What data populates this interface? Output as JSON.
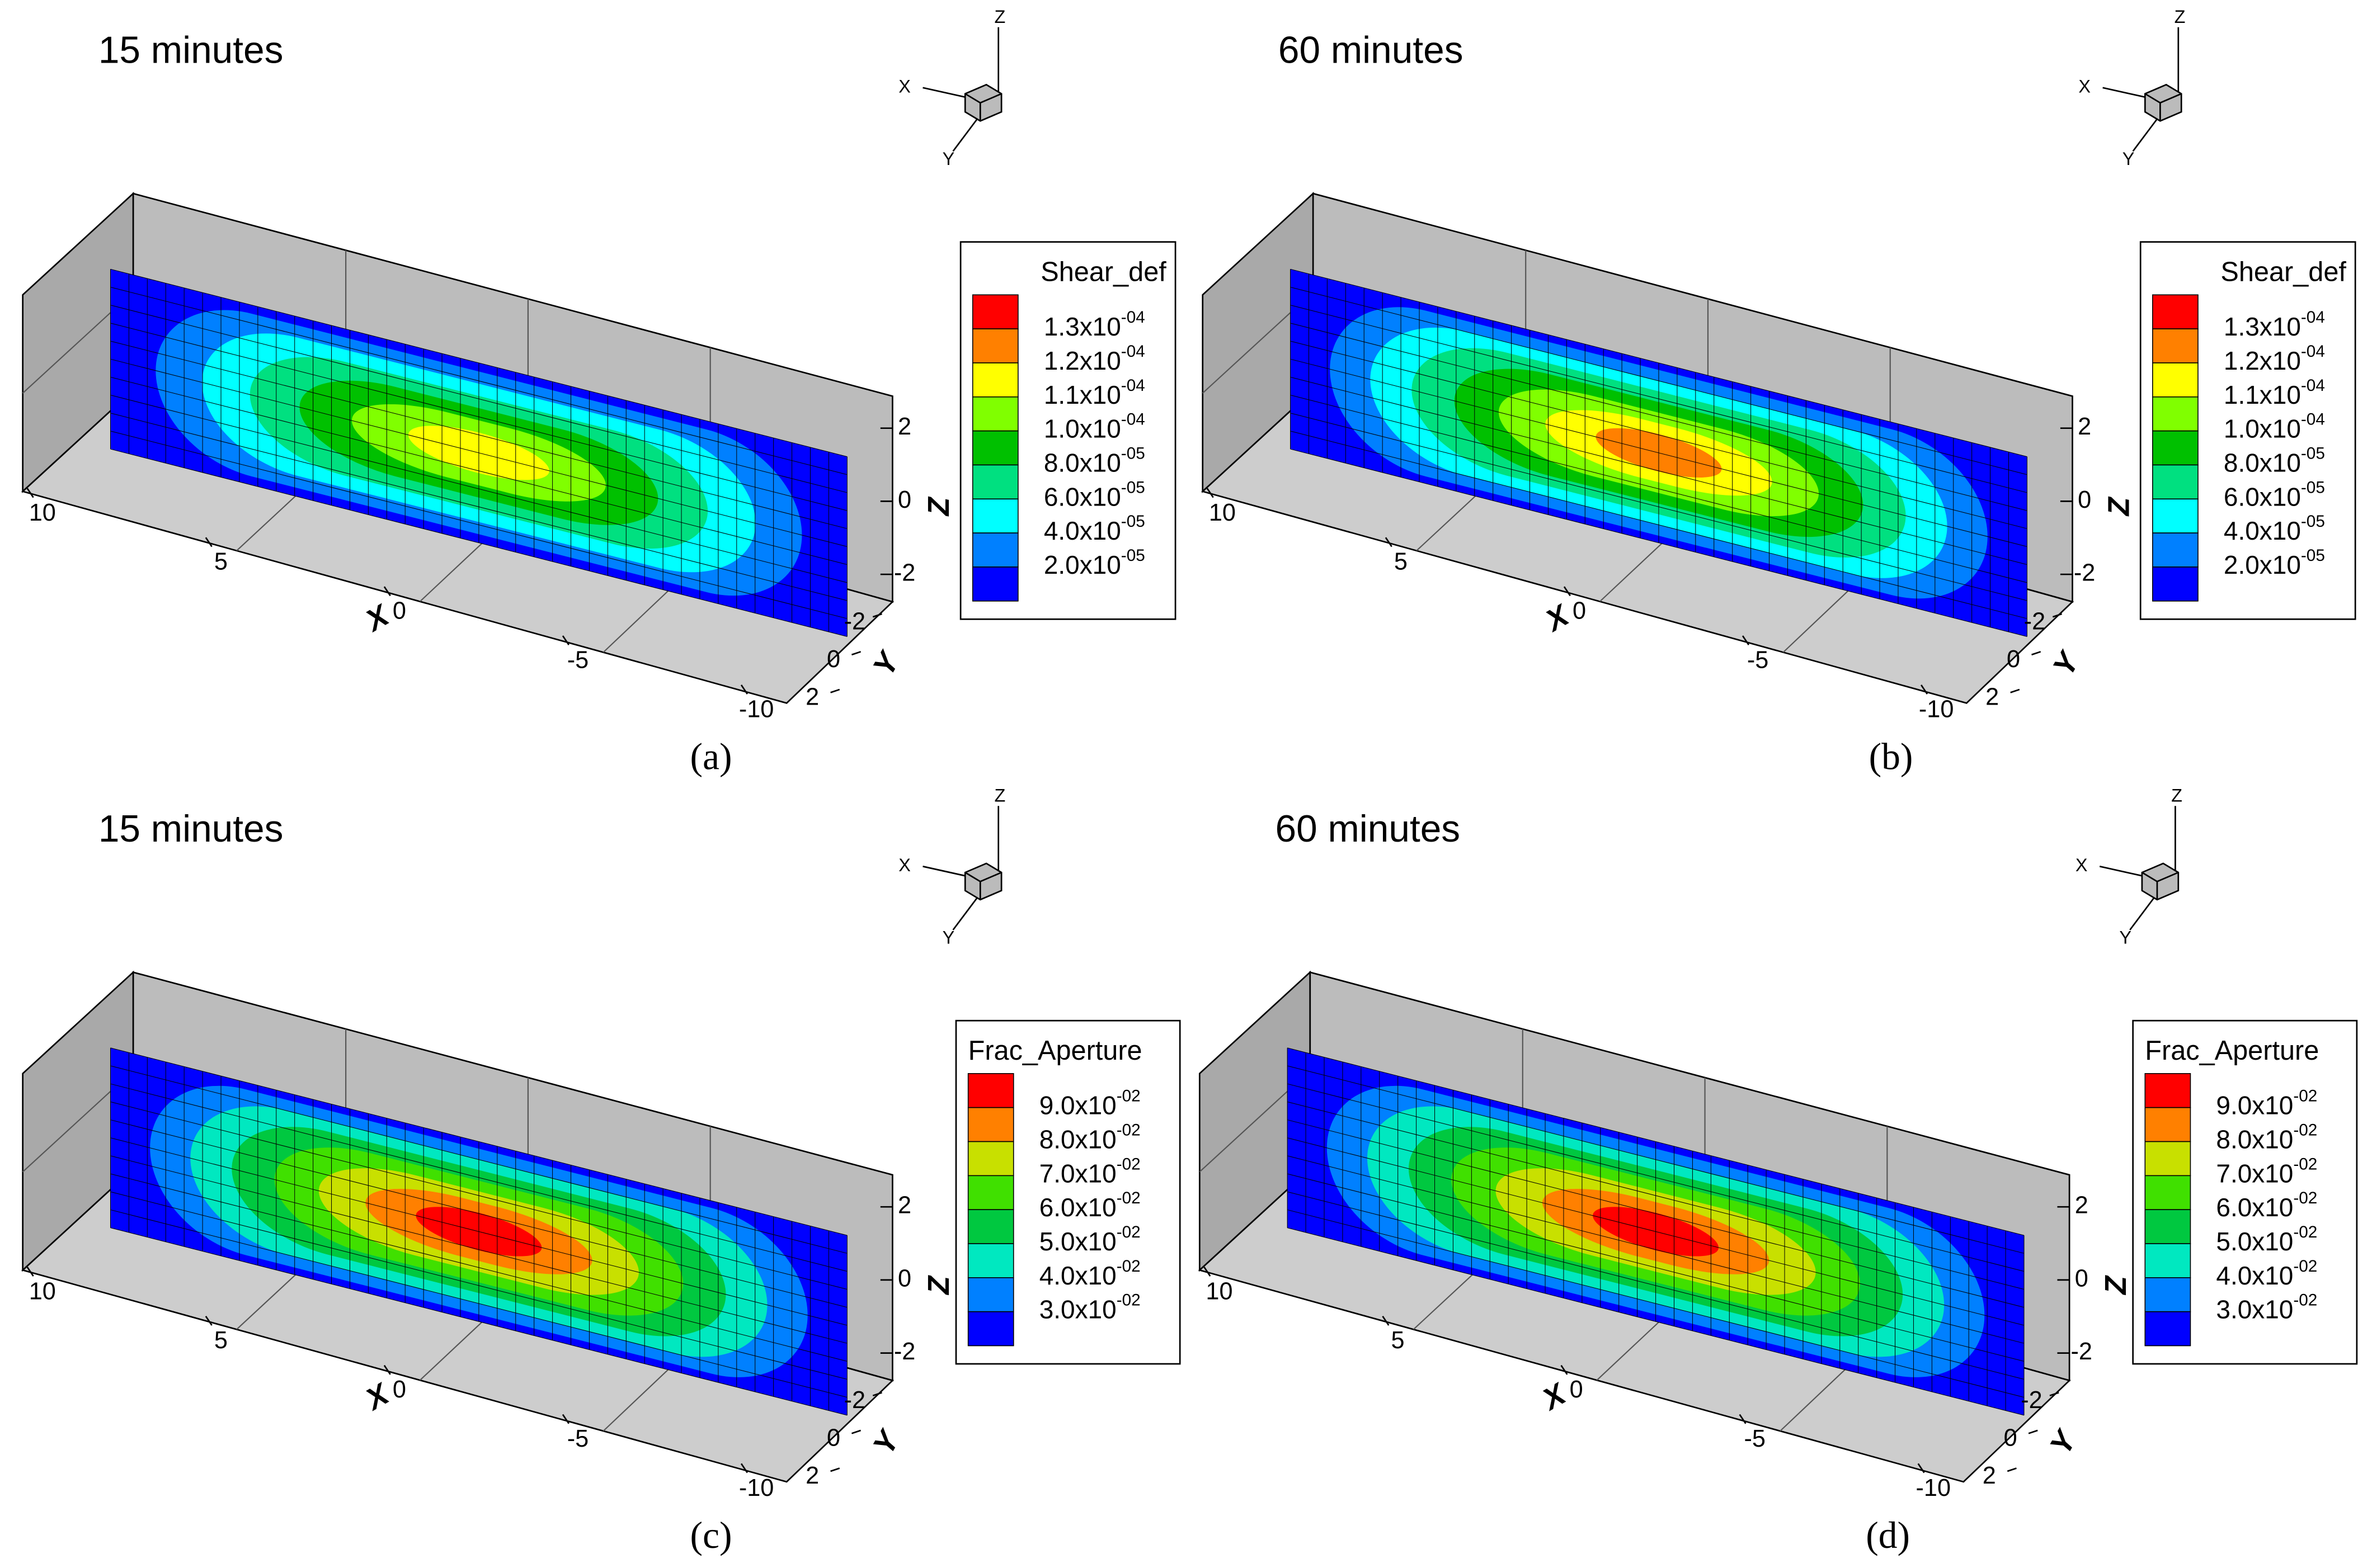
{
  "chart_data": [
    {
      "type": "contour3d",
      "title": "15 minutes",
      "caption": "(a)",
      "legend_title": "Shear_def",
      "levels": [
        {
          "value": 0.00013,
          "label": "1.3x10",
          "exponent": "-04"
        },
        {
          "value": 0.00012,
          "label": "1.2x10",
          "exponent": "-04"
        },
        {
          "value": 0.00011,
          "label": "1.1x10",
          "exponent": "-04"
        },
        {
          "value": 0.0001,
          "label": "1.0x10",
          "exponent": "-04"
        },
        {
          "value": 8e-05,
          "label": "8.0x10",
          "exponent": "-05"
        },
        {
          "value": 6e-05,
          "label": "6.0x10",
          "exponent": "-05"
        },
        {
          "value": 4e-05,
          "label": "4.0x10",
          "exponent": "-05"
        },
        {
          "value": 2e-05,
          "label": "2.0x10",
          "exponent": "-05"
        }
      ],
      "colors": [
        "#ff0000",
        "#ff8000",
        "#ffff00",
        "#80ff00",
        "#00c000",
        "#00e080",
        "#00ffff",
        "#0080ff",
        "#0000ff"
      ],
      "peak": 0.000115,
      "xlabel": "X",
      "ylabel": "Y",
      "zlabel": "Z",
      "triad": [
        "X",
        "Y",
        "Z"
      ],
      "xlim": [
        10,
        -10
      ],
      "xticks": [
        10,
        5,
        0,
        -5,
        -10
      ],
      "ylim": [
        -2,
        2
      ],
      "yticks": [
        -2,
        0,
        2
      ],
      "zlim": [
        -3,
        3
      ],
      "zticks": [
        2,
        0,
        -2
      ]
    },
    {
      "type": "contour3d",
      "title": "60 minutes",
      "caption": "(b)",
      "legend_title": "Shear_def",
      "levels": [
        {
          "value": 0.00013,
          "label": "1.3x10",
          "exponent": "-04"
        },
        {
          "value": 0.00012,
          "label": "1.2x10",
          "exponent": "-04"
        },
        {
          "value": 0.00011,
          "label": "1.1x10",
          "exponent": "-04"
        },
        {
          "value": 0.0001,
          "label": "1.0x10",
          "exponent": "-04"
        },
        {
          "value": 8e-05,
          "label": "8.0x10",
          "exponent": "-05"
        },
        {
          "value": 6e-05,
          "label": "6.0x10",
          "exponent": "-05"
        },
        {
          "value": 4e-05,
          "label": "4.0x10",
          "exponent": "-05"
        },
        {
          "value": 2e-05,
          "label": "2.0x10",
          "exponent": "-05"
        }
      ],
      "colors": [
        "#ff0000",
        "#ff8000",
        "#ffff00",
        "#80ff00",
        "#00c000",
        "#00e080",
        "#00ffff",
        "#0080ff",
        "#0000ff"
      ],
      "peak": 0.000125,
      "xlabel": "X",
      "ylabel": "Y",
      "zlabel": "Z",
      "triad": [
        "X",
        "Y",
        "Z"
      ],
      "xlim": [
        10,
        -10
      ],
      "xticks": [
        10,
        5,
        0,
        -5,
        -10
      ],
      "ylim": [
        -2,
        2
      ],
      "yticks": [
        -2,
        0,
        2
      ],
      "zlim": [
        -3,
        3
      ],
      "zticks": [
        2,
        0,
        -2
      ]
    },
    {
      "type": "contour3d",
      "title": "15 minutes",
      "caption": "(c)",
      "legend_title": "Frac_Aperture",
      "levels": [
        {
          "value": 0.09,
          "label": "9.0x10",
          "exponent": "-02"
        },
        {
          "value": 0.08,
          "label": "8.0x10",
          "exponent": "-02"
        },
        {
          "value": 0.07,
          "label": "7.0x10",
          "exponent": "-02"
        },
        {
          "value": 0.06,
          "label": "6.0x10",
          "exponent": "-02"
        },
        {
          "value": 0.05,
          "label": "5.0x10",
          "exponent": "-02"
        },
        {
          "value": 0.04,
          "label": "4.0x10",
          "exponent": "-02"
        },
        {
          "value": 0.03,
          "label": "3.0x10",
          "exponent": "-02"
        }
      ],
      "colors": [
        "#ff0000",
        "#ff8000",
        "#c8e000",
        "#40e000",
        "#00c840",
        "#00e8c0",
        "#0080ff",
        "#0000ff"
      ],
      "peak": 0.092,
      "xlabel": "X",
      "ylabel": "Y",
      "zlabel": "Z",
      "triad": [
        "X",
        "Y",
        "Z"
      ],
      "xlim": [
        10,
        -10
      ],
      "xticks": [
        10,
        5,
        0,
        -5,
        -10
      ],
      "ylim": [
        -2,
        2
      ],
      "yticks": [
        -2,
        0,
        2
      ],
      "zlim": [
        -3,
        3
      ],
      "zticks": [
        2,
        0,
        -2
      ]
    },
    {
      "type": "contour3d",
      "title": "60 minutes",
      "caption": "(d)",
      "legend_title": "Frac_Aperture",
      "levels": [
        {
          "value": 0.09,
          "label": "9.0x10",
          "exponent": "-02"
        },
        {
          "value": 0.08,
          "label": "8.0x10",
          "exponent": "-02"
        },
        {
          "value": 0.07,
          "label": "7.0x10",
          "exponent": "-02"
        },
        {
          "value": 0.06,
          "label": "6.0x10",
          "exponent": "-02"
        },
        {
          "value": 0.05,
          "label": "5.0x10",
          "exponent": "-02"
        },
        {
          "value": 0.04,
          "label": "4.0x10",
          "exponent": "-02"
        },
        {
          "value": 0.03,
          "label": "3.0x10",
          "exponent": "-02"
        }
      ],
      "colors": [
        "#ff0000",
        "#ff8000",
        "#c8e000",
        "#40e000",
        "#00c840",
        "#00e8c0",
        "#0080ff",
        "#0000ff"
      ],
      "peak": 0.093,
      "xlabel": "X",
      "ylabel": "Y",
      "zlabel": "Z",
      "triad": [
        "X",
        "Y",
        "Z"
      ],
      "xlim": [
        10,
        -10
      ],
      "xticks": [
        10,
        5,
        0,
        -5,
        -10
      ],
      "ylim": [
        -2,
        2
      ],
      "yticks": [
        -2,
        0,
        2
      ],
      "zlim": [
        -3,
        3
      ],
      "zticks": [
        2,
        0,
        -2
      ]
    }
  ]
}
